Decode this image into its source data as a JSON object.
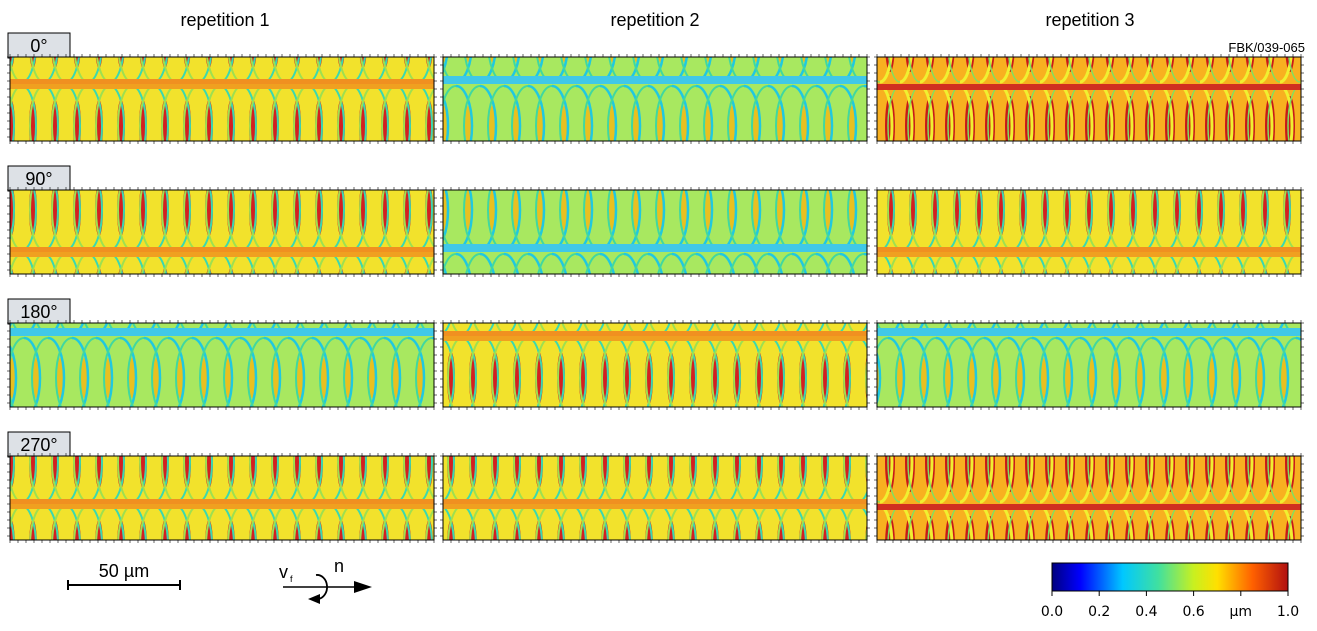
{
  "columns": [
    "repetition 1",
    "repetition 2",
    "repetition 3"
  ],
  "rows": [
    "0°",
    "90°",
    "180°",
    "270°"
  ],
  "specimen": "FBK/039-065",
  "scale_bar": "50 µm",
  "feed_arrow": {
    "velocity": "v",
    "velocity_subscript": "f",
    "rotation": "n"
  },
  "colorbar": {
    "labels": [
      "0.0",
      "0.2",
      "0.4",
      "0.6",
      "µm",
      "1.0"
    ]
  }
}
